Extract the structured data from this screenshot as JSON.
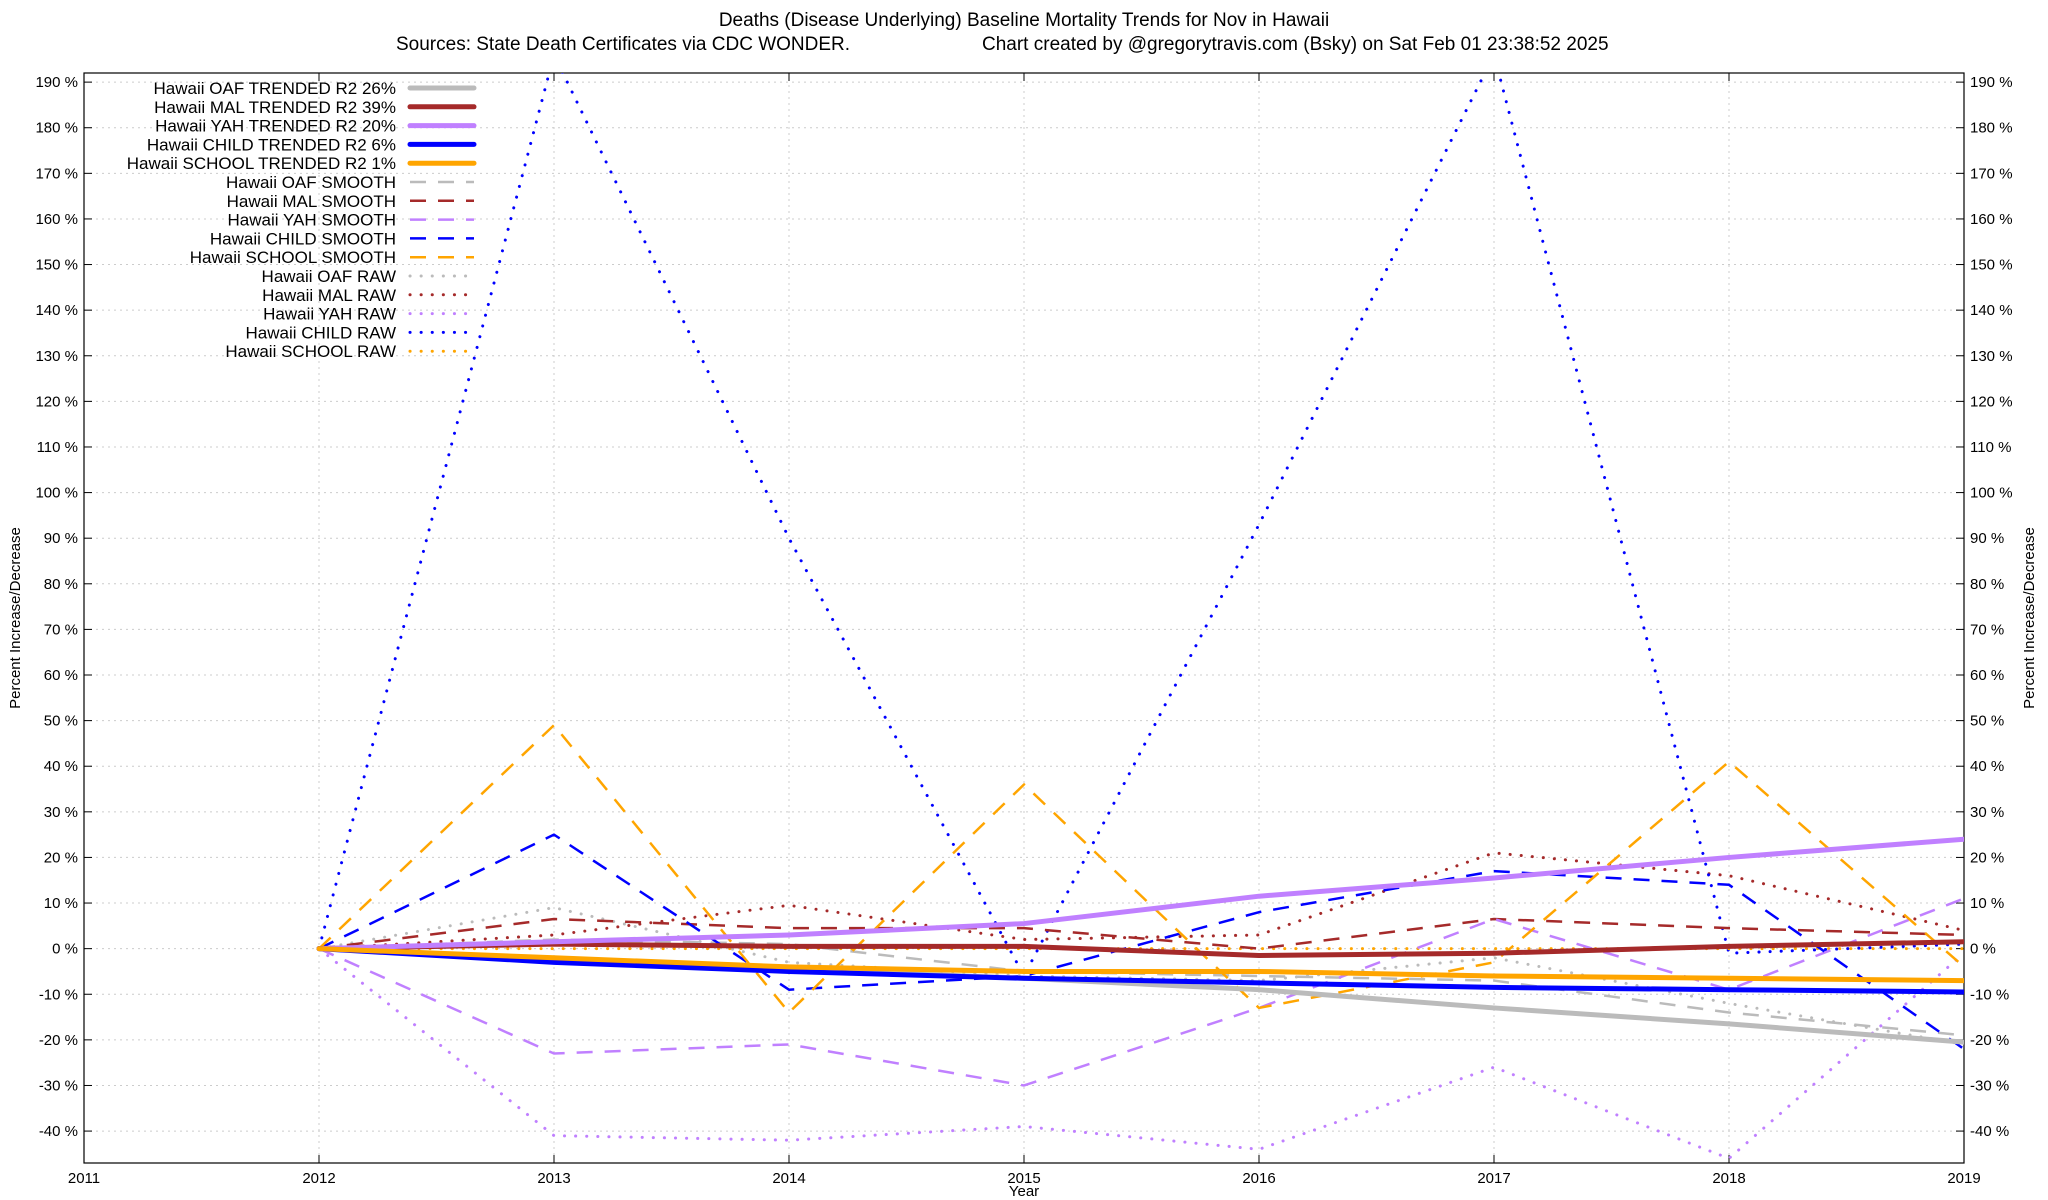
{
  "chart_data": {
    "type": "line",
    "title": "Deaths (Disease Underlying)  Baseline Mortality Trends for Nov in Hawaii",
    "subtitle_left": "Sources: State Death Certificates via CDC WONDER.",
    "subtitle_right": "Chart created by @gregorytravis.com (Bsky) on Sat Feb 01 23:38:52 2025",
    "xlabel": "Year",
    "ylabel": "Percent Increase/Decrease",
    "ylabel_right": "Percent Increase/Decrease",
    "xlim": [
      2011,
      2019
    ],
    "ylim": [
      -47,
      192
    ],
    "x_ticks": [
      "2011",
      "2012",
      "2013",
      "2014",
      "2015",
      "2016",
      "2017",
      "2018",
      "2019"
    ],
    "y_ticks": [
      "-40 %",
      "-30 %",
      "-20 %",
      "-10 %",
      "0 %",
      "10 %",
      "20 %",
      "30 %",
      "40 %",
      "50 %",
      "60 %",
      "70 %",
      "80 %",
      "90 %",
      "100 %",
      "110 %",
      "120 %",
      "130 %",
      "140 %",
      "150 %",
      "160 %",
      "170 %",
      "180 %",
      "190 %"
    ],
    "grid": true,
    "legend_position": "top-left",
    "x": [
      2012,
      2013,
      2014,
      2015,
      2016,
      2017,
      2018,
      2019
    ],
    "series": [
      {
        "name": "Hawaii OAF TRENDED R2  26%",
        "style": "solid",
        "color": "#bbbbbb",
        "values": [
          0,
          -2.5,
          -4.5,
          -6.5,
          -9,
          -13,
          -16.5,
          -20.5
        ]
      },
      {
        "name": "Hawaii MAL TRENDED R2  39%",
        "style": "solid",
        "color": "#a52a2a",
        "values": [
          0,
          1,
          0.5,
          0.5,
          -1.5,
          -1,
          0.5,
          1.5
        ]
      },
      {
        "name": "Hawaii YAH TRENDED R2  20%",
        "style": "solid",
        "color": "#c080ff",
        "values": [
          0,
          1.5,
          3,
          5.5,
          11.5,
          15.5,
          20,
          24
        ]
      },
      {
        "name": "Hawaii CHILD TRENDED R2   6%",
        "style": "solid",
        "color": "#0000ff",
        "values": [
          0,
          -3,
          -5,
          -6.5,
          -7.5,
          -8.5,
          -9,
          -9.5
        ]
      },
      {
        "name": "Hawaii SCHOOL TRENDED R2   1%",
        "style": "solid",
        "color": "#ffa500",
        "values": [
          0,
          -2,
          -4,
          -5,
          -5,
          -6,
          -6.5,
          -7
        ]
      },
      {
        "name": "Hawaii OAF SMOOTH",
        "style": "dash",
        "color": "#bbbbbb",
        "values": [
          0,
          2,
          1,
          -5,
          -6,
          -7,
          -14,
          -19
        ]
      },
      {
        "name": "Hawaii MAL SMOOTH",
        "style": "dash",
        "color": "#a52a2a",
        "values": [
          0,
          6.5,
          4.5,
          4.5,
          0,
          6.5,
          4.5,
          3
        ]
      },
      {
        "name": "Hawaii YAH SMOOTH",
        "style": "dash",
        "color": "#c080ff",
        "values": [
          0,
          -23,
          -21,
          -30,
          -13,
          6.5,
          -9,
          11
        ]
      },
      {
        "name": "Hawaii CHILD SMOOTH",
        "style": "dash",
        "color": "#0000ff",
        "values": [
          0,
          25,
          -9,
          -6,
          8,
          17,
          14,
          -22
        ]
      },
      {
        "name": "Hawaii SCHOOL SMOOTH",
        "style": "dash",
        "color": "#ffa500",
        "values": [
          0,
          49,
          -14,
          36,
          -13,
          -3,
          41,
          -4
        ]
      },
      {
        "name": "Hawaii OAF RAW",
        "style": "dot",
        "color": "#bbbbbb",
        "values": [
          0,
          9,
          -3,
          -6,
          -7,
          -2,
          -12,
          -21
        ]
      },
      {
        "name": "Hawaii MAL RAW",
        "style": "dot",
        "color": "#a52a2a",
        "values": [
          0,
          3,
          9.5,
          2,
          3,
          21,
          16,
          4
        ]
      },
      {
        "name": "Hawaii YAH RAW",
        "style": "dot",
        "color": "#c080ff",
        "values": [
          0,
          -41,
          -42,
          -39,
          -44,
          -26,
          -46,
          -1
        ]
      },
      {
        "name": "Hawaii CHILD RAW",
        "style": "dot",
        "color": "#0000ff",
        "values": [
          0,
          196,
          90,
          -6,
          93,
          196,
          -1,
          1
        ]
      },
      {
        "name": "Hawaii SCHOOL RAW",
        "style": "dot",
        "color": "#ffa500",
        "values": [
          0,
          0,
          0,
          0,
          0,
          0,
          0,
          0
        ]
      }
    ]
  }
}
